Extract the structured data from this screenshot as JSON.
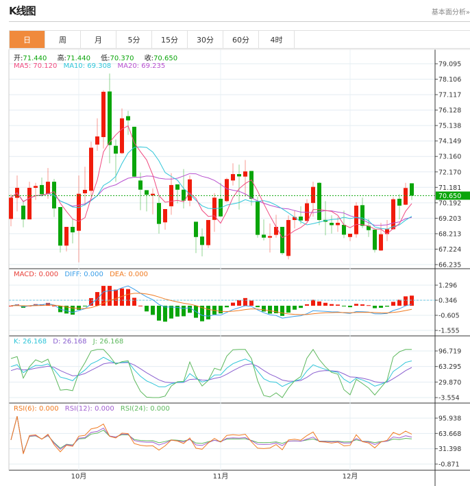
{
  "header": {
    "title": "K线图",
    "more_link": "基本面分析»"
  },
  "tabs": [
    {
      "label": "日",
      "active": true
    },
    {
      "label": "周"
    },
    {
      "label": "月"
    },
    {
      "label": "5分"
    },
    {
      "label": "15分"
    },
    {
      "label": "30分"
    },
    {
      "label": "60分"
    },
    {
      "label": "4时"
    }
  ],
  "legend": {
    "ohlc": [
      {
        "label": "开:",
        "value": "71.440"
      },
      {
        "label": "高:",
        "value": "71.440"
      },
      {
        "label": "低:",
        "value": "70.370"
      },
      {
        "label": "收:",
        "value": "70.650"
      }
    ],
    "ma": [
      {
        "label": "MA5: 70.120",
        "color": "#f0497f"
      },
      {
        "label": "MA10: 69.308",
        "color": "#2ec5d8"
      },
      {
        "label": "MA20: 69.235",
        "color": "#b74fcf"
      }
    ],
    "macd": [
      {
        "label": "MACD: 0.000",
        "color": "#e8413a"
      },
      {
        "label": "DIFF: 0.000",
        "color": "#3a9ee8"
      },
      {
        "label": "DEA: 0.000",
        "color": "#f07a20"
      }
    ],
    "kdj": [
      {
        "label": "K: 26.168",
        "color": "#2ec5d8"
      },
      {
        "label": "D: 26.168",
        "color": "#8a5fcf"
      },
      {
        "label": "J: 26.168",
        "color": "#5cb85c"
      }
    ],
    "rsi": [
      {
        "label": "RSI(6): 0.000",
        "color": "#f07a20"
      },
      {
        "label": "RSI(12): 0.000",
        "color": "#a05fd0"
      },
      {
        "label": "RSI(24): 0.000",
        "color": "#5cb85c"
      }
    ]
  },
  "colors": {
    "up": "#f01c0c",
    "down": "#0aa50a",
    "ohlc_value": "#0aa50a"
  },
  "chart_data": {
    "type": "candlestick",
    "current_price": "70.650",
    "x_labels": [
      {
        "label": "10月",
        "index": 11
      },
      {
        "label": "11月",
        "index": 34
      },
      {
        "label": "12月",
        "index": 55
      }
    ],
    "price_ticks": [
      "79.095",
      "78.106",
      "77.117",
      "76.128",
      "75.138",
      "74.149",
      "73.160",
      "72.170",
      "71.181",
      "70.192",
      "69.203",
      "68.213",
      "67.224",
      "66.235"
    ],
    "macd_ticks": [
      "1.296",
      "0.346",
      "-0.605",
      "-1.555"
    ],
    "kdj_ticks": [
      "96.719",
      "63.295",
      "29.870",
      "-3.554"
    ],
    "rsi_ticks": [
      "95.938",
      "63.668",
      "31.398",
      "-0.871"
    ],
    "ohlc": [
      [
        69.16,
        70.74,
        68.69,
        70.52
      ],
      [
        70.51,
        71.94,
        69.64,
        71.15
      ],
      [
        70.01,
        70.33,
        68.62,
        69.13
      ],
      [
        69.13,
        71.54,
        69.13,
        71.15
      ],
      [
        71.15,
        71.47,
        70.37,
        71.27
      ],
      [
        71.33,
        71.81,
        70.59,
        70.74
      ],
      [
        70.77,
        72.42,
        70.45,
        71.54
      ],
      [
        71.54,
        71.72,
        69.28,
        69.83
      ],
      [
        69.92,
        69.92,
        67.01,
        67.45
      ],
      [
        67.45,
        68.65,
        67.08,
        68.65
      ],
      [
        68.65,
        69.13,
        67.59,
        68.3
      ],
      [
        68.4,
        71.94,
        66.38,
        70.77
      ],
      [
        70.8,
        72.5,
        70.01,
        71.02
      ],
      [
        70.96,
        74.11,
        70.59,
        73.72
      ],
      [
        73.92,
        75.6,
        73.52,
        74.44
      ],
      [
        74.4,
        77.4,
        73.67,
        77.3
      ],
      [
        77.32,
        78.47,
        72.72,
        73.89
      ],
      [
        73.84,
        74.25,
        71.54,
        73.34
      ],
      [
        73.37,
        76.23,
        73.3,
        75.6
      ],
      [
        75.74,
        76.08,
        74.54,
        75.47
      ],
      [
        75.06,
        75.06,
        71.84,
        71.87
      ],
      [
        71.62,
        72.13,
        69.72,
        71.03
      ],
      [
        71.0,
        71.0,
        69.64,
        70.71
      ],
      [
        70.67,
        71.11,
        69.45,
        70.77
      ],
      [
        70.18,
        70.59,
        68.22,
        68.84
      ],
      [
        68.94,
        69.79,
        68.47,
        69.79
      ],
      [
        69.97,
        72.09,
        69.42,
        71.33
      ],
      [
        71.37,
        71.37,
        70.16,
        71.03
      ],
      [
        71.03,
        72.35,
        69.83,
        70.33
      ],
      [
        70.33,
        71.94,
        69.97,
        71.69
      ],
      [
        68.98,
        68.98,
        66.97,
        68.0
      ],
      [
        68.03,
        68.55,
        66.76,
        67.49
      ],
      [
        67.48,
        69.09,
        67.3,
        69.09
      ],
      [
        69.1,
        70.81,
        68.33,
        70.52
      ],
      [
        70.45,
        71.47,
        69.28,
        69.32
      ],
      [
        70.3,
        71.79,
        70.23,
        71.71
      ],
      [
        71.62,
        72.72,
        71.3,
        72.03
      ],
      [
        72.03,
        72.64,
        69.76,
        71.88
      ],
      [
        71.87,
        72.93,
        70.59,
        72.2
      ],
      [
        72.23,
        72.23,
        70.01,
        70.45
      ],
      [
        70.3,
        70.59,
        67.96,
        68.14
      ],
      [
        68.15,
        69.13,
        67.78,
        67.96
      ],
      [
        67.96,
        68.87,
        67.01,
        68.06
      ],
      [
        68.14,
        69.42,
        67.96,
        68.65
      ],
      [
        68.65,
        68.65,
        66.86,
        66.97
      ],
      [
        66.79,
        69.38,
        66.57,
        69.09
      ],
      [
        69.09,
        69.72,
        68.55,
        69.28
      ],
      [
        69.31,
        69.97,
        68.84,
        69.06
      ],
      [
        69.03,
        70.42,
        69.01,
        70.16
      ],
      [
        70.18,
        71.54,
        69.31,
        71.21
      ],
      [
        71.47,
        71.52,
        68.76,
        69.09
      ],
      [
        69.1,
        70.3,
        68.11,
        68.98
      ],
      [
        68.91,
        69.39,
        68.22,
        68.76
      ],
      [
        68.76,
        69.28,
        68.33,
        68.91
      ],
      [
        68.78,
        69.69,
        67.93,
        68.15
      ],
      [
        68.0,
        68.21,
        67.74,
        68.21
      ],
      [
        68.18,
        70.23,
        67.96,
        70.01
      ],
      [
        70.04,
        70.52,
        68.57,
        68.72
      ],
      [
        68.72,
        69.16,
        68.0,
        68.44
      ],
      [
        68.47,
        68.47,
        67.01,
        67.18
      ],
      [
        67.14,
        68.91,
        67.11,
        68.18
      ],
      [
        68.19,
        69.09,
        67.74,
        68.5
      ],
      [
        68.5,
        70.55,
        68.47,
        70.42
      ],
      [
        70.45,
        70.74,
        69.13,
        70.01
      ],
      [
        70.07,
        71.47,
        70.04,
        71.14
      ],
      [
        71.44,
        71.44,
        70.37,
        70.65
      ]
    ]
  }
}
